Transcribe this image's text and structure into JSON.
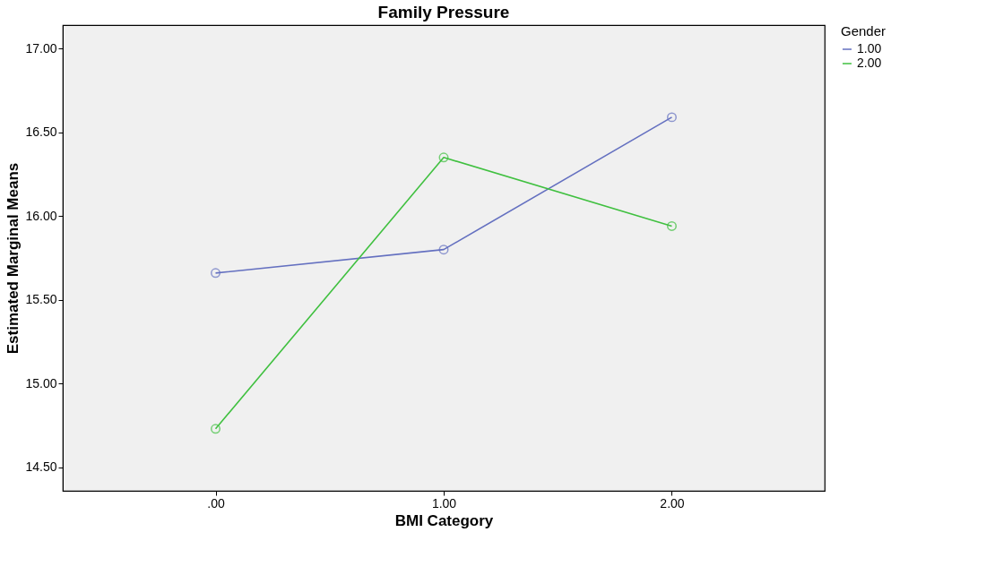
{
  "chart_data": {
    "type": "line",
    "title": "Family Pressure",
    "xlabel": "BMI Category",
    "ylabel": "Estimated Marginal Means",
    "legend_title": "Gender",
    "categories": [
      ".00",
      "1.00",
      "2.00"
    ],
    "series": [
      {
        "name": "1.00",
        "color": "#6470c0",
        "values": [
          15.66,
          15.8,
          16.59
        ]
      },
      {
        "name": "2.00",
        "color": "#40c040",
        "values": [
          14.73,
          16.35,
          15.94
        ]
      }
    ],
    "ylim": [
      14.36,
      17.14
    ],
    "yticks": [
      {
        "value": 14.5,
        "label": "14.50"
      },
      {
        "value": 15,
        "label": "15.00"
      },
      {
        "value": 15.5,
        "label": "15.50"
      },
      {
        "value": 16,
        "label": "16.00"
      },
      {
        "value": 16.5,
        "label": "16.50"
      },
      {
        "value": 17,
        "label": "17.00"
      }
    ],
    "grid": false,
    "legend": "top right",
    "marker": "circle",
    "line_style": "solid"
  }
}
